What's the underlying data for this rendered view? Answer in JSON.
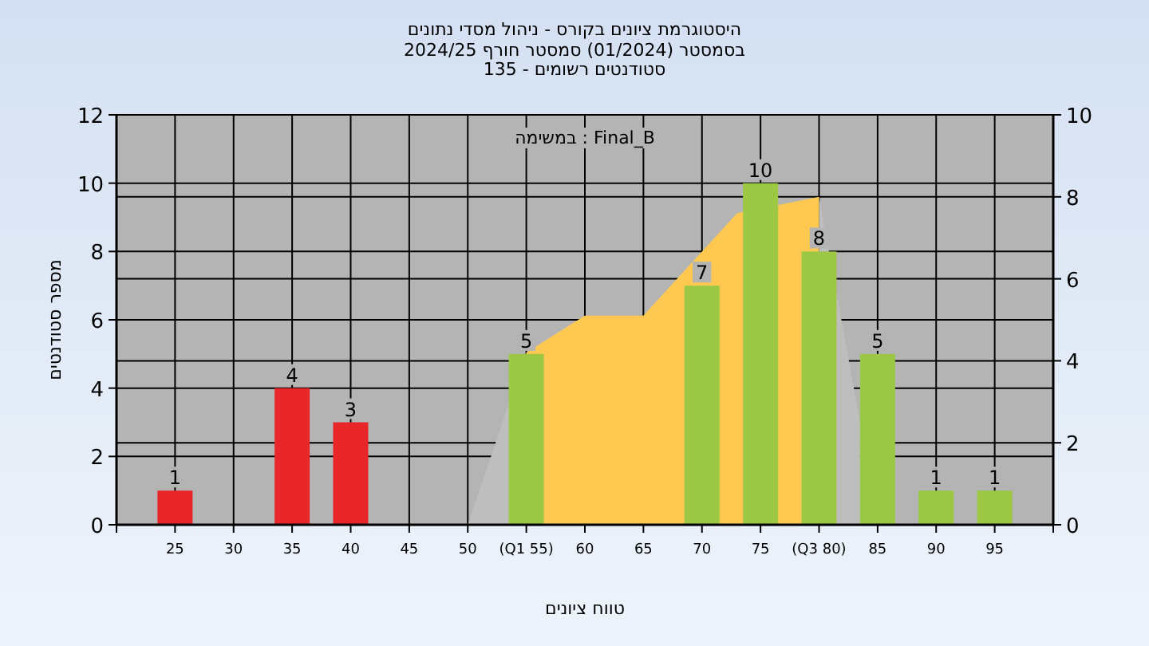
{
  "chart_data": {
    "type": "bar",
    "title": "היסטוגרמת ציונים בקורס - ניהול מסדי נתונים",
    "subtitle": "בסמסטר (01/2024) סמסטר חורף 2024/25\nסטודנטים רשומים - 135",
    "xlabel": "טווח ציונים",
    "ylabel": "מספר סטודנטים",
    "annotations": [
      "במשימה : Final_B"
    ],
    "xlim": [
      20,
      100
    ],
    "xticks": [
      {
        "value": 20,
        "label": null
      },
      25,
      30,
      35,
      40,
      45,
      50,
      {
        "value": 55,
        "label": "(Q1 55)"
      },
      60,
      65,
      70,
      75,
      {
        "value": 80,
        "label": "(Q3 80)"
      },
      85,
      90,
      95,
      {
        "value": 100,
        "label": null
      }
    ],
    "ylim": [
      0,
      12
    ],
    "yticks": [
      0,
      2,
      4,
      6,
      8,
      10,
      12
    ],
    "y2lim": [
      0,
      10
    ],
    "y2ticks": [
      0,
      2,
      4,
      6,
      8,
      10
    ],
    "grid": true,
    "series": [
      {
        "type": "area",
        "axis": "y2",
        "color": "#bebebe",
        "x": [
          50,
          55
        ],
        "values": [
          0,
          4.2
        ]
      },
      {
        "type": "area",
        "axis": "y2",
        "color": "#bebebe",
        "x": [
          80,
          83.5
        ],
        "values": [
          8,
          2.5
        ]
      },
      {
        "type": "area",
        "axis": "y2",
        "color": "#ffc850",
        "x": [
          55,
          60,
          65,
          73,
          80
        ],
        "values": [
          4.2,
          5.1,
          5.1,
          7.6,
          8
        ]
      },
      {
        "x": [
          25,
          35,
          40,
          55,
          70,
          75,
          80,
          85,
          90,
          95
        ],
        "values": [
          1,
          4,
          3,
          5,
          7,
          10,
          8,
          5,
          1,
          1
        ],
        "value_labels": [
          "1",
          "4",
          "3",
          "5",
          "7",
          "10",
          "8",
          "5",
          "1",
          "1"
        ],
        "colors": [
          "#e8262a",
          "#e8262a",
          "#e8262a",
          "#9cc845",
          "#9cc845",
          "#9cc845",
          "#9cc845",
          "#9cc845",
          "#9cc845",
          "#9cc845"
        ]
      }
    ]
  }
}
